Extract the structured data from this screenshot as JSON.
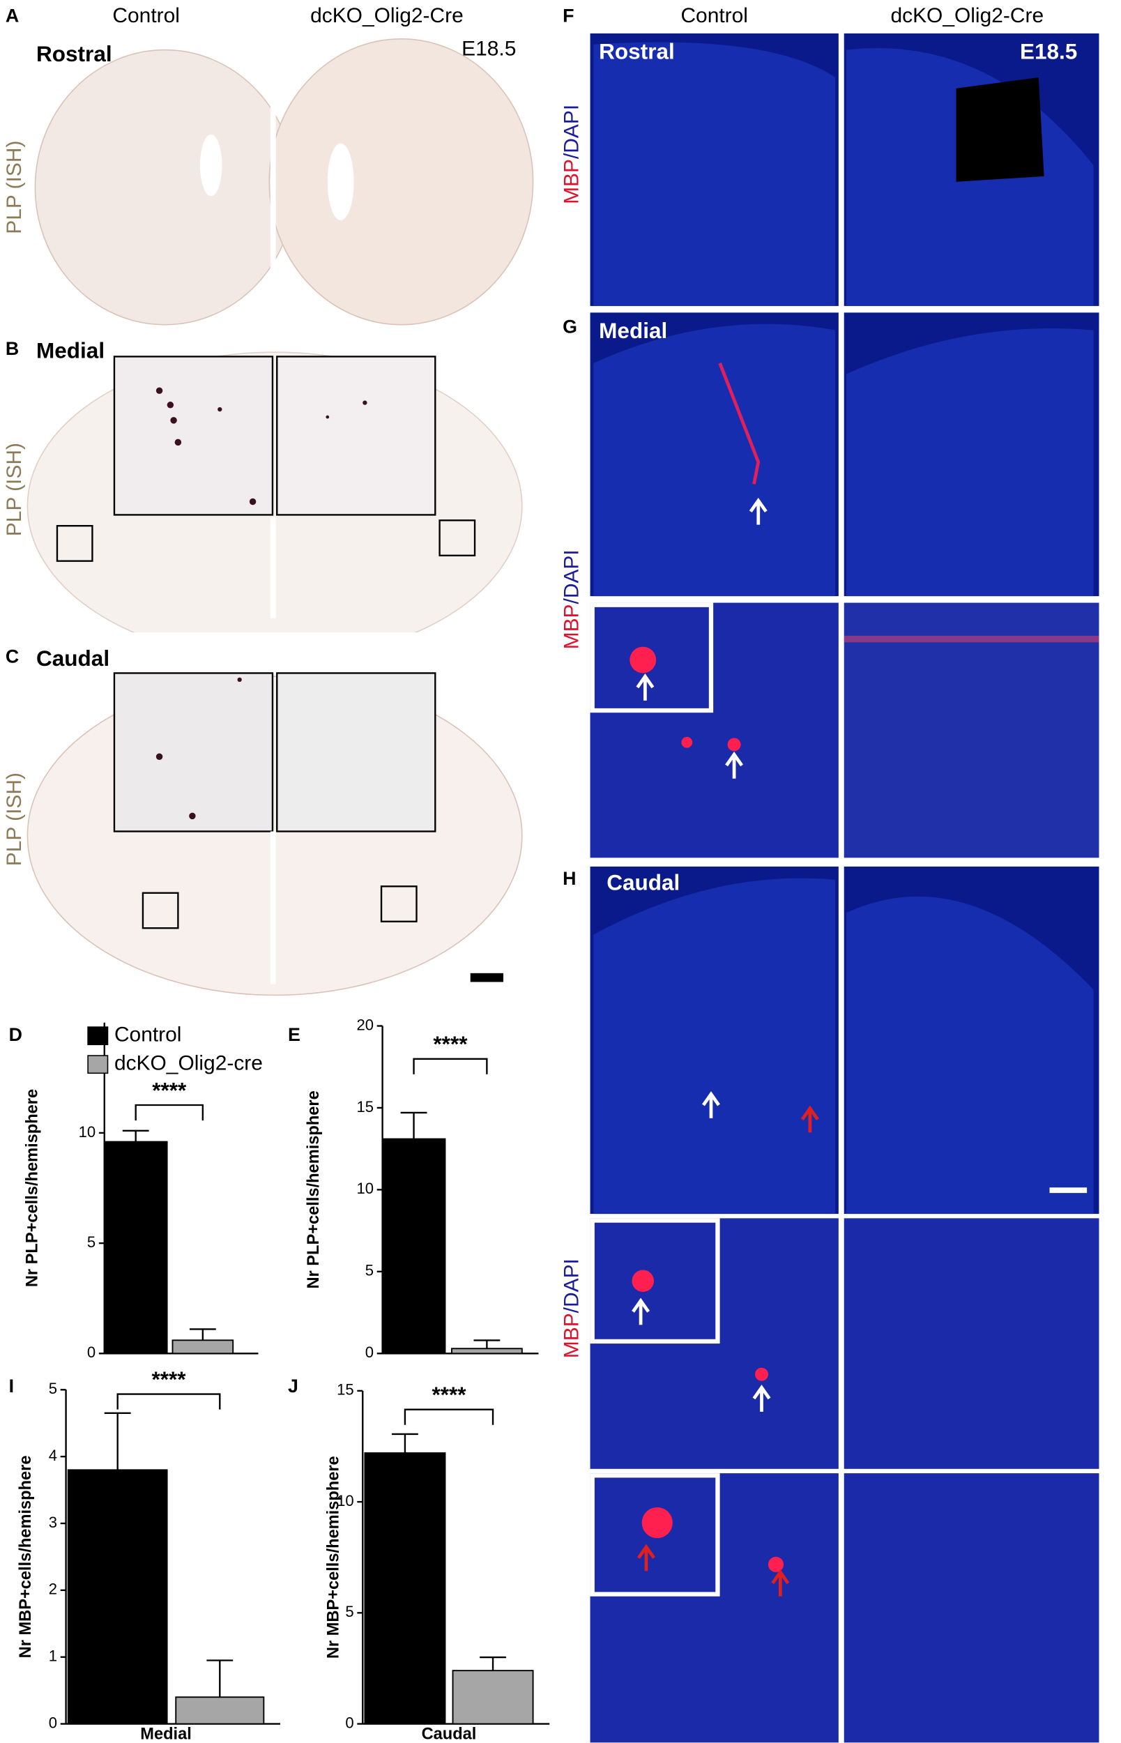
{
  "figure": {
    "panel_letters": [
      "A",
      "B",
      "C",
      "D",
      "E",
      "F",
      "G",
      "H",
      "I",
      "J"
    ],
    "genotype_headers": [
      "Control",
      "dcKO_Olig2-Cre"
    ],
    "regions": [
      "Rostral",
      "Medial",
      "Caudal"
    ],
    "age": "E18.5",
    "ish_label": "PLP (ISH)",
    "if_label": [
      "MBP",
      "/DAPI"
    ]
  },
  "chart_data": [
    {
      "type": "bar",
      "y_label": "Nr PLP+cells/hemisphere",
      "ylim": [
        0,
        15
      ],
      "yticks": [
        0,
        5,
        10
      ],
      "values": [
        9.6,
        0.6
      ],
      "errors": [
        0.5,
        0.5
      ],
      "colors": [
        "#000000",
        "#a6a6a6"
      ],
      "legend": [
        "Control",
        "dcKO_Olig2-cre"
      ],
      "significance": "****"
    },
    {
      "type": "bar",
      "y_label": "Nr PLP+cells/hemisphere",
      "ylim": [
        0,
        20
      ],
      "yticks": [
        0,
        5,
        10,
        15,
        20
      ],
      "values": [
        13.1,
        0.3
      ],
      "errors": [
        1.6,
        0.5
      ],
      "colors": [
        "#000000",
        "#a6a6a6"
      ],
      "significance": "****"
    },
    {
      "type": "bar",
      "y_label": "Nr MBP+cells/hemisphere",
      "x_label": "Medial",
      "ylim": [
        0,
        5
      ],
      "yticks": [
        0,
        1,
        2,
        3,
        4,
        5
      ],
      "values": [
        3.8,
        0.4
      ],
      "errors": [
        0.85,
        0.55
      ],
      "colors": [
        "#000000",
        "#a6a6a6"
      ],
      "significance": "****"
    },
    {
      "type": "bar",
      "y_label": "Nr MBP+cells/hemisphere",
      "x_label": "Caudal",
      "ylim": [
        0,
        15
      ],
      "yticks": [
        0,
        5,
        10,
        15
      ],
      "values": [
        12.2,
        2.4
      ],
      "errors": [
        0.85,
        0.6
      ],
      "colors": [
        "#000000",
        "#a6a6a6"
      ],
      "significance": "****"
    }
  ]
}
